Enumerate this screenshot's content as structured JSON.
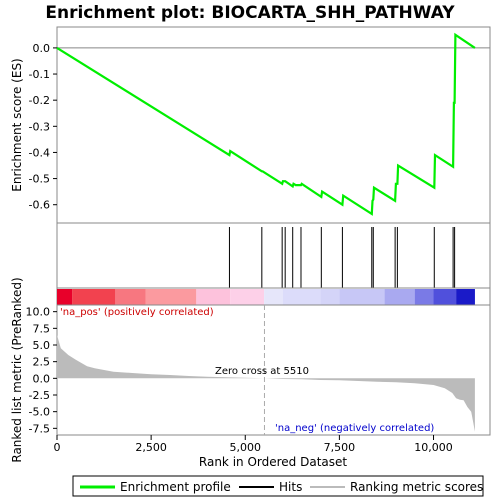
{
  "chart_data": {
    "type": "line",
    "title": "Enrichment plot: BIOCARTA_SHH_PATHWAY",
    "x_range": [
      0,
      11500
    ],
    "x_ticks": [
      "0",
      "2,500",
      "5,000",
      "7,500",
      "10,000"
    ],
    "x_tick_values": [
      0,
      2500,
      5000,
      7500,
      10000
    ],
    "xlabel": "Rank in Ordered Dataset",
    "top_panel": {
      "ylabel": "Enrichment score (ES)",
      "ylim": [
        -0.67,
        0.08
      ],
      "y_ticks": [
        "0.0",
        "-0.1",
        "-0.2",
        "-0.3",
        "-0.4",
        "-0.5",
        "-0.6"
      ],
      "y_tick_values": [
        0.0,
        -0.1,
        -0.2,
        -0.3,
        -0.4,
        -0.5,
        -0.6
      ],
      "series": [
        {
          "name": "Enrichment profile",
          "color": "#00ee00",
          "x": [
            0,
            4580,
            4600,
            5440,
            5460,
            5980,
            6000,
            6060,
            6260,
            6280,
            6340,
            6480,
            6500,
            7020,
            7040,
            7580,
            7600,
            8360,
            8380,
            8400,
            8420,
            8980,
            9000,
            9040,
            9060,
            10020,
            10040,
            10520,
            10540,
            10560,
            10580,
            11100
          ],
          "y": [
            0.0,
            -0.41,
            -0.395,
            -0.472,
            -0.472,
            -0.52,
            -0.51,
            -0.51,
            -0.53,
            -0.52,
            -0.525,
            -0.525,
            -0.52,
            -0.57,
            -0.55,
            -0.6,
            -0.565,
            -0.635,
            -0.585,
            -0.58,
            -0.535,
            -0.585,
            -0.52,
            -0.52,
            -0.45,
            -0.535,
            -0.41,
            -0.455,
            -0.21,
            -0.21,
            0.05,
            0.0
          ]
        }
      ]
    },
    "hits": [
      4580,
      5440,
      5980,
      6060,
      6260,
      6480,
      7020,
      7580,
      8360,
      8400,
      8980,
      9040,
      10020,
      10520,
      10560
    ],
    "bottom_panel": {
      "ylabel": "Ranked list metric (PreRanked)",
      "ylim": [
        -8.5,
        11
      ],
      "y_ticks": [
        "10.0",
        "7.5",
        "5.0",
        "2.5",
        "0.0",
        "-2.5",
        "-5.0",
        "-7.5"
      ],
      "y_tick_values": [
        10.0,
        7.5,
        5.0,
        2.5,
        0.0,
        -2.5,
        -5.0,
        -7.5
      ],
      "metric_x": [
        0,
        100,
        300,
        500,
        800,
        1000,
        1500,
        2000,
        2500,
        3000,
        3500,
        4000,
        4500,
        5000,
        5510,
        6000,
        6500,
        7000,
        7500,
        8000,
        8500,
        9000,
        9500,
        10000,
        10300,
        10500,
        10600,
        10700,
        10800,
        10900,
        11000,
        11050,
        11100
      ],
      "metric_y": [
        6.5,
        4.5,
        3.5,
        2.8,
        1.8,
        1.5,
        1.0,
        0.8,
        0.6,
        0.5,
        0.35,
        0.25,
        0.15,
        0.08,
        0.0,
        -0.1,
        -0.15,
        -0.25,
        -0.3,
        -0.4,
        -0.5,
        -0.6,
        -0.75,
        -1.0,
        -1.5,
        -2.2,
        -3.0,
        -3.2,
        -3.3,
        -4.3,
        -5.0,
        -6.5,
        -8.0
      ],
      "zero_cross": 5510,
      "zero_cross_label": "Zero cross at 5510",
      "pos_label": "'na_pos' (positively correlated)",
      "neg_label": "'na_neg' (negatively correlated)"
    },
    "legend": {
      "position": "bottom",
      "entries": [
        {
          "label": "Enrichment profile",
          "color": "#00ee00"
        },
        {
          "label": "Hits",
          "color": "#000000"
        },
        {
          "label": "Ranking metric scores",
          "color": "#bbbbbb"
        }
      ]
    }
  }
}
